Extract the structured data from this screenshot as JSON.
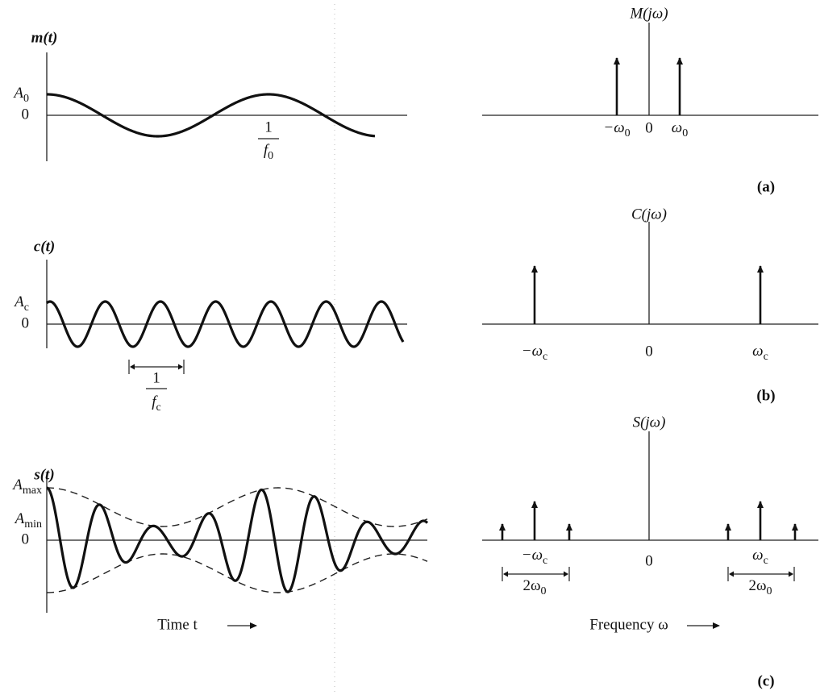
{
  "panel_a": {
    "time_label": "m(t)",
    "level_high": {
      "base": "A",
      "sub": "0"
    },
    "level_zero": "0",
    "period_numerator": "1",
    "period_denominator": {
      "base": "f",
      "sub": "0"
    },
    "spectrum_label": "M(jω)",
    "freq_neg": {
      "base": "−ω",
      "sub": "0"
    },
    "freq_zero": "0",
    "freq_pos": {
      "base": "ω",
      "sub": "0"
    },
    "caption": "(a)"
  },
  "panel_b": {
    "time_label": "c(t)",
    "level_high": {
      "base": "A",
      "sub": "c"
    },
    "level_zero": "0",
    "period_numerator": "1",
    "period_denominator": {
      "base": "f",
      "sub": "c"
    },
    "spectrum_label": "C(jω)",
    "freq_neg": {
      "base": "−ω",
      "sub": "c"
    },
    "freq_zero": "0",
    "freq_pos": {
      "base": "ω",
      "sub": "c"
    },
    "caption": "(b)"
  },
  "panel_c": {
    "time_label": "s(t)",
    "level_max": {
      "base": "A",
      "sub": "max"
    },
    "level_min": {
      "base": "A",
      "sub": "min"
    },
    "level_zero": "0",
    "spectrum_label": "S(jω)",
    "freq_neg": {
      "base": "−ω",
      "sub": "c"
    },
    "freq_zero": "0",
    "freq_pos": {
      "base": "ω",
      "sub": "c"
    },
    "band_left": {
      "base": "2ω",
      "sub": "0"
    },
    "band_right": {
      "base": "2ω",
      "sub": "0"
    },
    "caption": "(c)"
  },
  "axes": {
    "time": "Time t",
    "frequency": "Frequency ω"
  }
}
